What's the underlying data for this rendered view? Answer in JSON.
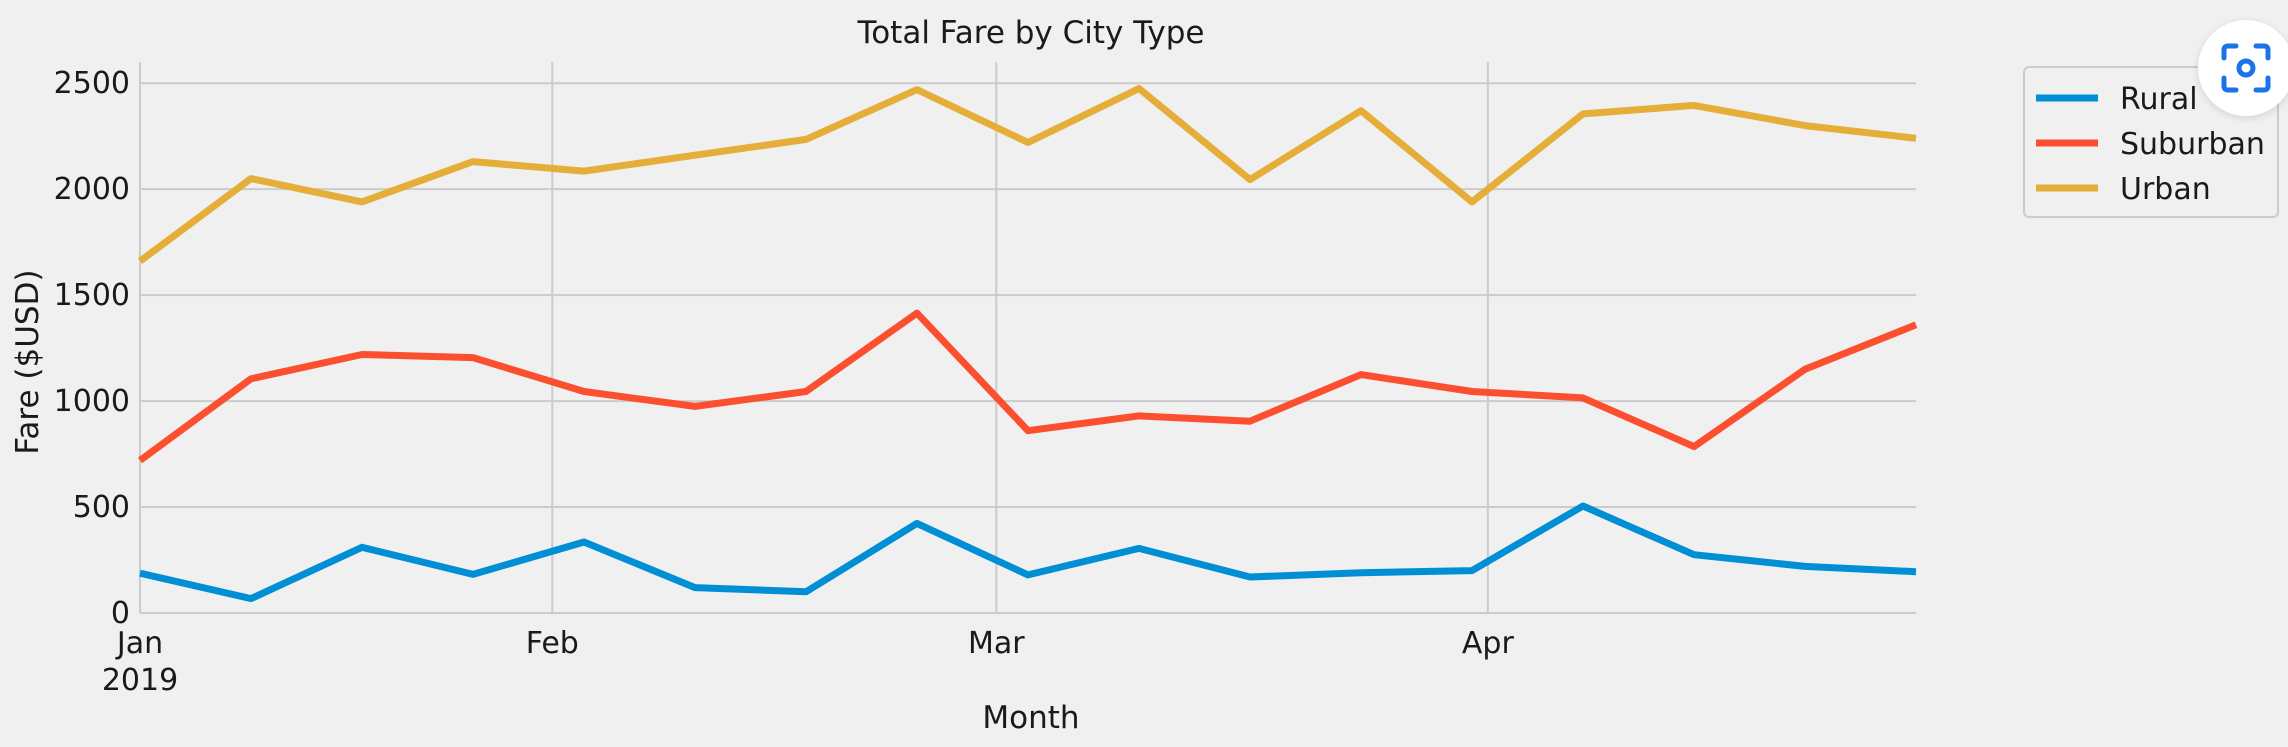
{
  "chart_data": {
    "type": "line",
    "title": "Total Fare by City Type",
    "xlabel": "Month",
    "ylabel": "Fare ($USD)",
    "ylim": [
      0,
      2600
    ],
    "xlim": [
      "2019-01-06",
      "2019-04-28"
    ],
    "yticks": [
      "0",
      "500",
      "1000",
      "1500",
      "2000",
      "2500"
    ],
    "xticks": [
      {
        "value": "2019-01-06",
        "label": "Jan",
        "sublabel": "2019"
      },
      {
        "value": "2019-02-01",
        "label": "Feb"
      },
      {
        "value": "2019-03-01",
        "label": "Mar"
      },
      {
        "value": "2019-04-01",
        "label": "Apr"
      }
    ],
    "grid": true,
    "legend_position": "outside-upper-right",
    "x": [
      "2019-01-06",
      "2019-01-13",
      "2019-01-20",
      "2019-01-27",
      "2019-02-03",
      "2019-02-10",
      "2019-02-17",
      "2019-02-24",
      "2019-03-03",
      "2019-03-10",
      "2019-03-17",
      "2019-03-24",
      "2019-03-31",
      "2019-04-07",
      "2019-04-14",
      "2019-04-21",
      "2019-04-28"
    ],
    "series": [
      {
        "name": "Rural",
        "color": "#008fd5",
        "values": [
          188,
          68,
          310,
          182,
          335,
          120,
          100,
          423,
          180,
          305,
          170,
          190,
          200,
          505,
          275,
          220,
          195
        ]
      },
      {
        "name": "Suburban",
        "color": "#fc4f30",
        "values": [
          720,
          1105,
          1220,
          1205,
          1045,
          975,
          1045,
          1415,
          860,
          930,
          905,
          1125,
          1045,
          1015,
          785,
          1150,
          1360
        ]
      },
      {
        "name": "Urban",
        "color": "#e5ae38",
        "values": [
          1660,
          2050,
          1940,
          2130,
          2085,
          2160,
          2235,
          2470,
          2220,
          2475,
          2045,
          2370,
          1940,
          2355,
          2395,
          2300,
          2240
        ]
      }
    ]
  },
  "lens_button": {
    "icon": "lens-scan-icon"
  }
}
